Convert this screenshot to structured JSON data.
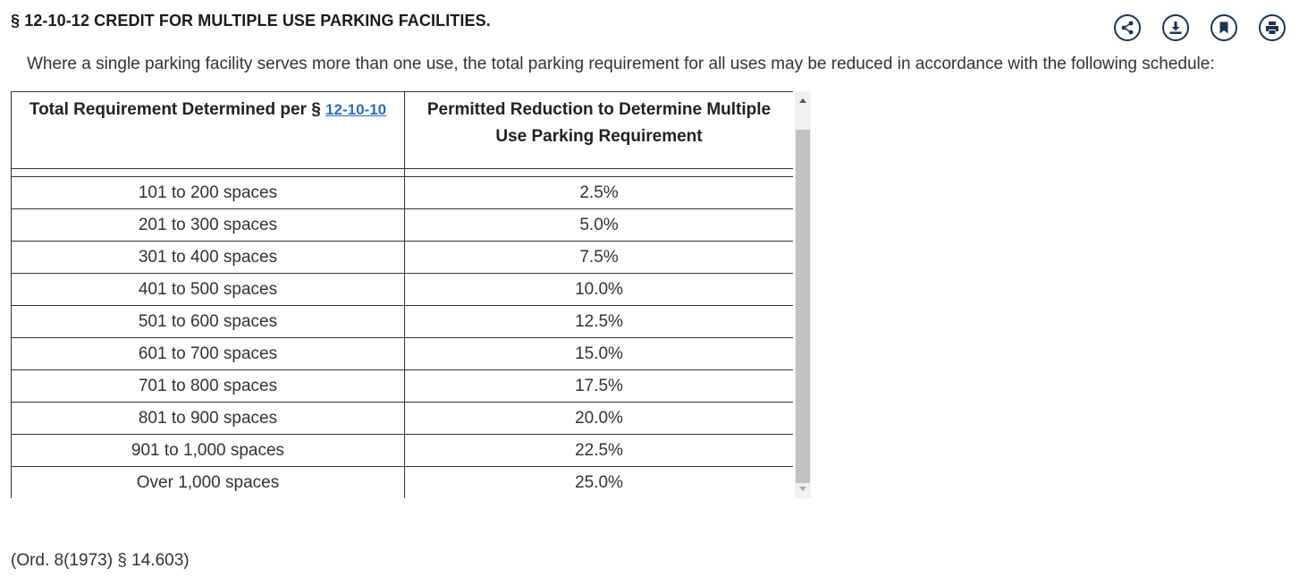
{
  "section": {
    "title": "§ 12-10-12 CREDIT FOR MULTIPLE USE PARKING FACILITIES.",
    "intro": "Where a single parking facility serves more than one use, the total parking requirement for all uses may be reduced in accordance with the following schedule:",
    "footer": "(Ord. 8(1973) § 14.603)"
  },
  "actions": {
    "share_icon": "share-icon",
    "download_icon": "download-icon",
    "bookmark_icon": "bookmark-icon",
    "print_icon": "print-icon",
    "color": "#1f3350"
  },
  "table": {
    "header_col1_prefix": "Total Requirement Determined per §",
    "header_col1_link": "12-10-10",
    "header_col2": "Permitted Reduction to Determine Multiple Use Parking Requirement",
    "link_color": "#2f6db5",
    "rows": [
      {
        "range": "101 to 200 spaces",
        "reduction": "2.5%"
      },
      {
        "range": "201 to 300 spaces",
        "reduction": "5.0%"
      },
      {
        "range": "301 to 400 spaces",
        "reduction": "7.5%"
      },
      {
        "range": "401 to 500 spaces",
        "reduction": "10.0%"
      },
      {
        "range": "501 to 600 spaces",
        "reduction": "12.5%"
      },
      {
        "range": "601 to 700 spaces",
        "reduction": "15.0%"
      },
      {
        "range": "701 to 800 spaces",
        "reduction": "17.5%"
      },
      {
        "range": "801 to 900 spaces",
        "reduction": "20.0%"
      },
      {
        "range": "901 to 1,000 spaces",
        "reduction": "22.5%"
      },
      {
        "range": "Over 1,000 spaces",
        "reduction": "25.0%"
      }
    ]
  }
}
